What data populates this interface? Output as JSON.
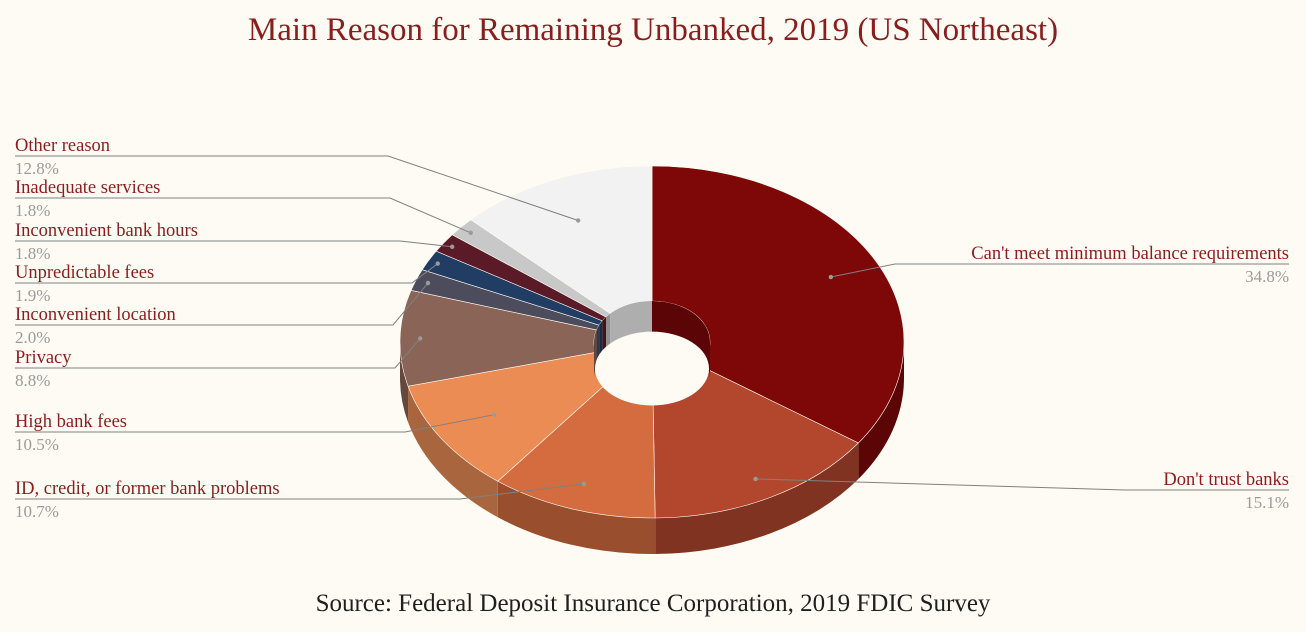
{
  "title": "Main Reason for Remaining Unbanked, 2019 (US Northeast)",
  "source": "Source: Federal Deposit Insurance Corporation, 2019 FDIC Survey",
  "chart_data": {
    "type": "pie",
    "variant": "3d-donut",
    "title": "Main Reason for Remaining Unbanked, 2019 (US Northeast)",
    "legend": "none",
    "slices": [
      {
        "label": "Can't meet minimum balance requirements",
        "value": 34.8,
        "display": "34.8%",
        "color": "#7e0708"
      },
      {
        "label": "Don't trust banks",
        "value": 15.1,
        "display": "15.1%",
        "color": "#b2472e"
      },
      {
        "label": "ID, credit, or former bank problems",
        "value": 10.7,
        "display": "10.7%",
        "color": "#d56c40"
      },
      {
        "label": "High bank fees",
        "value": 10.5,
        "display": "10.5%",
        "color": "#eb8c55"
      },
      {
        "label": "Privacy",
        "value": 8.8,
        "display": "8.8%",
        "color": "#8a6456"
      },
      {
        "label": "Inconvenient location",
        "value": 2.0,
        "display": "2.0%",
        "color": "#4d4c5c"
      },
      {
        "label": "Unpredictable fees",
        "value": 1.9,
        "display": "1.9%",
        "color": "#223d63"
      },
      {
        "label": "Inconvenient bank hours",
        "value": 1.8,
        "display": "1.8%",
        "color": "#5a1a27"
      },
      {
        "label": "Inadequate services",
        "value": 1.8,
        "display": "1.8%",
        "color": "#c8c8c8"
      },
      {
        "label": "Other reason",
        "value": 12.8,
        "display": "12.8%",
        "color": "#f2f2f2"
      }
    ]
  }
}
